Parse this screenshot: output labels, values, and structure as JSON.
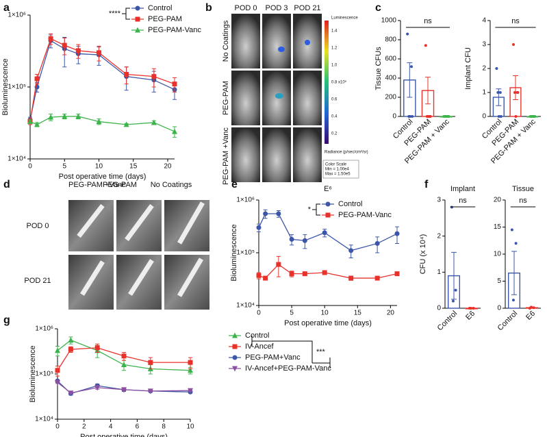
{
  "panels": {
    "b": {
      "label": "b",
      "columns": [
        "POD 0",
        "POD 3",
        "POD 21"
      ],
      "rows": [
        "No Coatings",
        "PEG-PAM",
        "PEG-PAM +Vanc"
      ],
      "colorbar_title": "Luminescence",
      "colorbar_ticks": [
        "1.4",
        "1.2",
        "1.0",
        "0.8 x10⁵",
        "0.6",
        "0.4",
        "0.2"
      ],
      "colorbar_unit": "Radiance (p/sec/cm²/sr)",
      "color_scale": [
        "Color Scale",
        "Min = 1.00e4",
        "Max = 1.50e5"
      ]
    },
    "d": {
      "label": "d",
      "columns": [
        "PEG-PAM +Vanc",
        "PEG-PAM",
        "No Coatings"
      ],
      "rows": [
        "POD 0",
        "POD 21"
      ]
    }
  },
  "chart_data": [
    {
      "type": "line",
      "panel": "a",
      "xlabel": "Post operative time (days)",
      "ylabel": "Bioluminescence",
      "x": [
        0,
        1,
        3,
        5,
        7,
        10,
        14,
        18,
        21
      ],
      "xlim": [
        0,
        21
      ],
      "xticks": [
        0,
        5,
        10,
        15,
        20
      ],
      "log_y": true,
      "ylim": [
        10000,
        1000000
      ],
      "yticks": [
        {
          "value": 10000,
          "label": "1×10⁴"
        },
        {
          "value": 100000,
          "label": "1×10⁵"
        },
        {
          "value": 1000000,
          "label": "1×10⁶"
        }
      ],
      "annotation": "****",
      "series": [
        {
          "name": "Control",
          "color": "#3b56a8",
          "marker": "circle",
          "values": [
            35000,
            100000,
            440000,
            340000,
            290000,
            280000,
            140000,
            125000,
            92000
          ],
          "errors": [
            3000,
            15000,
            90000,
            150000,
            80000,
            80000,
            50000,
            40000,
            25000
          ]
        },
        {
          "name": "PEG-PAM",
          "color": "#e8312a",
          "marker": "square",
          "values": [
            33000,
            130000,
            470000,
            380000,
            320000,
            300000,
            150000,
            140000,
            110000
          ],
          "errors": [
            3000,
            20000,
            80000,
            100000,
            70000,
            70000,
            40000,
            40000,
            25000
          ]
        },
        {
          "name": "PEG-PAM-Vanc",
          "color": "#3cb44b",
          "marker": "triangle",
          "values": [
            33000,
            30000,
            38000,
            39000,
            39000,
            33000,
            30000,
            32000,
            24000
          ],
          "errors": [
            2000,
            2000,
            4000,
            3000,
            3000,
            3000,
            1000,
            2000,
            4000
          ]
        }
      ]
    },
    {
      "type": "bar",
      "panel": "c",
      "ylabel": "Tissue CFUs",
      "categories": [
        "Control",
        "PEG-PAM",
        "PEG-PAM + Vanc"
      ],
      "colors": [
        "#3b56a8",
        "#e8312a",
        "#3cb44b"
      ],
      "values": [
        380,
        270,
        0
      ],
      "errors": [
        180,
        140,
        0
      ],
      "points": [
        [
          860,
          520,
          0,
          0,
          0
        ],
        [
          740,
          0,
          0,
          0,
          0
        ],
        [
          0,
          0,
          0,
          0,
          0
        ]
      ],
      "ylim": [
        0,
        1000
      ],
      "yticks": [
        0,
        200,
        400,
        600,
        800,
        1000
      ],
      "annotation": "ns"
    },
    {
      "type": "bar",
      "ylabel": "Implant CFU",
      "categories": [
        "Control",
        "PEG-PAM",
        "PEG-PAM + Vanc"
      ],
      "colors": [
        "#3b56a8",
        "#e8312a",
        "#3cb44b"
      ],
      "values": [
        0.8,
        1.2,
        0
      ],
      "errors": [
        0.35,
        0.5,
        0
      ],
      "points": [
        [
          2,
          1,
          1,
          0,
          0
        ],
        [
          3,
          1,
          1,
          1,
          0
        ],
        [
          0,
          0,
          0,
          0,
          0
        ]
      ],
      "ylim": [
        0,
        4
      ],
      "yticks": [
        0,
        1,
        2,
        3,
        4
      ],
      "annotation": "ns"
    },
    {
      "type": "line",
      "panel": "e",
      "title": "E⁶",
      "xlabel": "Post operative time (days)",
      "ylabel": "Bioluminescence",
      "x": [
        0,
        1,
        3,
        5,
        7,
        10,
        14,
        18,
        21
      ],
      "xlim": [
        0,
        21
      ],
      "xticks": [
        0,
        5,
        10,
        15,
        20
      ],
      "log_y": true,
      "ylim": [
        10000,
        1000000
      ],
      "yticks": [
        {
          "value": 10000,
          "label": "1×10⁴"
        },
        {
          "value": 100000,
          "label": "1×10⁵"
        },
        {
          "value": 1000000,
          "label": "1×10⁶"
        }
      ],
      "annotation": "*",
      "series": [
        {
          "name": "Control",
          "color": "#3b56a8",
          "marker": "circle",
          "values": [
            300000,
            550000,
            550000,
            180000,
            170000,
            240000,
            110000,
            150000,
            230000
          ],
          "errors": [
            50000,
            100000,
            80000,
            40000,
            50000,
            40000,
            30000,
            50000,
            80000
          ]
        },
        {
          "name": "PEG-PAM-Vanc",
          "color": "#e8312a",
          "marker": "square",
          "values": [
            37000,
            33000,
            60000,
            40000,
            40000,
            42000,
            33000,
            33000,
            40000
          ],
          "errors": [
            5000,
            2000,
            25000,
            5000,
            2000,
            3000,
            3000,
            2000,
            2000
          ]
        }
      ]
    },
    {
      "type": "bar",
      "panel": "f",
      "title": "Implant",
      "ylabel": "CFU (x 10⁴)",
      "categories": [
        "Control",
        "E6"
      ],
      "colors": [
        "#3b56a8",
        "#e8312a"
      ],
      "values": [
        0.9,
        0
      ],
      "errors": [
        0.65,
        0
      ],
      "points": [
        [
          2.8,
          0.5,
          0.2
        ],
        [
          0,
          0,
          0
        ]
      ],
      "ylim": [
        0,
        3
      ],
      "yticks": [
        0,
        1,
        2,
        3
      ],
      "annotation": "ns"
    },
    {
      "type": "bar",
      "title": "Tissue",
      "categories": [
        "Control",
        "E6"
      ],
      "colors": [
        "#3b56a8",
        "#e8312a"
      ],
      "values": [
        6.5,
        0.1
      ],
      "errors": [
        4,
        0
      ],
      "points": [
        [
          14.5,
          12,
          1.5
        ],
        [
          0,
          0.1,
          0.2
        ]
      ],
      "ylim": [
        0,
        20
      ],
      "yticks": [
        0,
        5,
        10,
        15,
        20
      ],
      "annotation": "ns"
    },
    {
      "type": "line",
      "panel": "g",
      "xlabel": "Post operative time (days)",
      "ylabel": "Bioluminescence",
      "x": [
        0,
        1,
        3,
        5,
        7,
        10
      ],
      "xlim": [
        0,
        10
      ],
      "xticks": [
        0,
        2,
        4,
        6,
        8,
        10
      ],
      "log_y": true,
      "ylim": [
        10000,
        1000000
      ],
      "yticks": [
        {
          "value": 10000,
          "label": "1×10⁴"
        },
        {
          "value": 100000,
          "label": "1×10⁵"
        },
        {
          "value": 1000000,
          "label": "1×10⁶"
        }
      ],
      "annotation": "***",
      "series": [
        {
          "name": "Control",
          "color": "#3cb44b",
          "marker": "triangle",
          "values": [
            330000,
            560000,
            330000,
            160000,
            130000,
            120000
          ],
          "errors": [
            80000,
            100000,
            100000,
            40000,
            30000,
            20000
          ]
        },
        {
          "name": "IV-Ancef",
          "color": "#e8312a",
          "marker": "square",
          "values": [
            120000,
            350000,
            380000,
            250000,
            180000,
            180000
          ],
          "errors": [
            30000,
            50000,
            80000,
            50000,
            50000,
            50000
          ]
        },
        {
          "name": "PEG-PAM+Vanc",
          "color": "#3b56a8",
          "marker": "circle",
          "values": [
            70000,
            37000,
            55000,
            45000,
            42000,
            40000
          ],
          "errors": [
            5000,
            3000,
            5000,
            4000,
            2000,
            2000
          ]
        },
        {
          "name": "IV-Ancef+PEG-PAM-Vanc",
          "color": "#8e4fa0",
          "marker": "triangle-down",
          "values": [
            65000,
            38000,
            50000,
            45000,
            42000,
            43000
          ],
          "errors": [
            3000,
            2000,
            4000,
            3000,
            2000,
            2000
          ]
        }
      ]
    }
  ]
}
